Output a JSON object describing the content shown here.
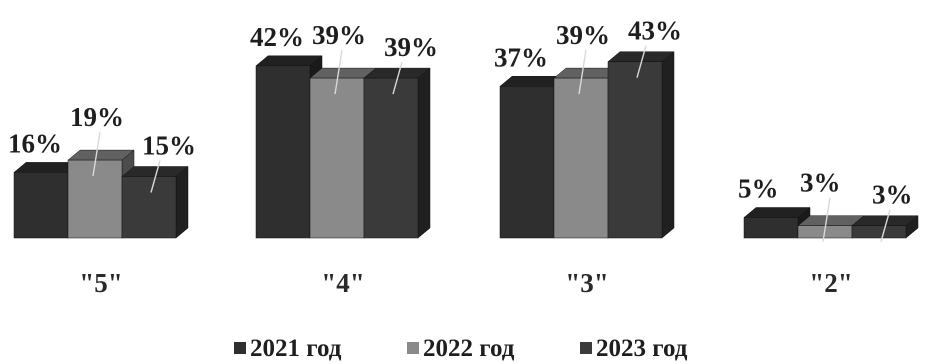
{
  "chart_data": {
    "type": "bar",
    "categories": [
      "\"5\"",
      "\"4\"",
      "\"3\"",
      "\"2\""
    ],
    "series": [
      {
        "name": "2021 год",
        "values": [
          16,
          42,
          37,
          5
        ],
        "labels": [
          "16%",
          "42%",
          "37%",
          "5%"
        ],
        "color": "#2f2f2f"
      },
      {
        "name": "2022 год",
        "values": [
          19,
          39,
          39,
          3
        ],
        "labels": [
          "19%",
          "39%",
          "39%",
          "3%"
        ],
        "color": "#8a8a8a"
      },
      {
        "name": "2023 год",
        "values": [
          15,
          39,
          43,
          3
        ],
        "labels": [
          "15%",
          "39%",
          "43%",
          "3%"
        ],
        "color": "#3a3a3a"
      }
    ],
    "ylim": [
      0,
      45
    ],
    "legend_position": "bottom",
    "grid": false,
    "three_d": true
  }
}
